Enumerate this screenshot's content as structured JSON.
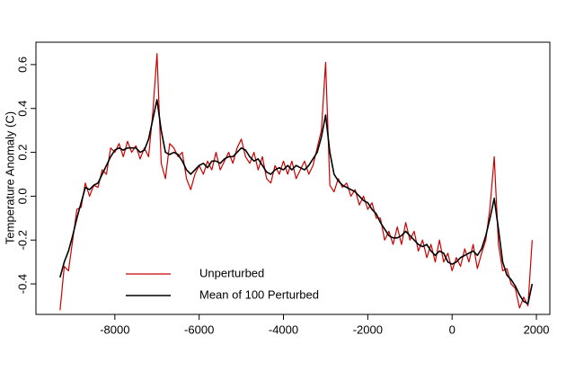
{
  "chart_data": {
    "type": "line",
    "y_label": "Temperature Anomaly (C)",
    "x": [
      -9300,
      -9200,
      -9100,
      -9000,
      -8900,
      -8800,
      -8700,
      -8600,
      -8500,
      -8400,
      -8300,
      -8200,
      -8100,
      -8000,
      -7900,
      -7800,
      -7700,
      -7600,
      -7500,
      -7400,
      -7300,
      -7200,
      -7100,
      -7000,
      -6900,
      -6800,
      -6700,
      -6600,
      -6500,
      -6400,
      -6300,
      -6200,
      -6100,
      -6000,
      -5900,
      -5800,
      -5700,
      -5600,
      -5500,
      -5400,
      -5300,
      -5200,
      -5100,
      -5000,
      -4900,
      -4800,
      -4700,
      -4600,
      -4500,
      -4400,
      -4300,
      -4200,
      -4100,
      -4000,
      -3900,
      -3800,
      -3700,
      -3600,
      -3500,
      -3400,
      -3300,
      -3200,
      -3100,
      -3000,
      -2900,
      -2800,
      -2700,
      -2600,
      -2500,
      -2400,
      -2300,
      -2200,
      -2100,
      -2000,
      -1900,
      -1800,
      -1700,
      -1600,
      -1500,
      -1400,
      -1300,
      -1200,
      -1100,
      -1000,
      -900,
      -800,
      -700,
      -600,
      -500,
      -400,
      -300,
      -200,
      -100,
      0,
      100,
      200,
      300,
      400,
      500,
      600,
      700,
      800,
      900,
      1000,
      1100,
      1200,
      1300,
      1400,
      1500,
      1600,
      1700,
      1800,
      1900
    ],
    "series": [
      {
        "name": "Unperturbed",
        "color": "#cc0000",
        "width": 1.2,
        "values": [
          -0.52,
          -0.32,
          -0.34,
          -0.2,
          -0.06,
          -0.05,
          0.06,
          0.0,
          0.05,
          0.04,
          0.12,
          0.1,
          0.22,
          0.2,
          0.24,
          0.18,
          0.25,
          0.2,
          0.23,
          0.17,
          0.22,
          0.18,
          0.38,
          0.65,
          0.15,
          0.08,
          0.24,
          0.22,
          0.18,
          0.2,
          0.08,
          0.03,
          0.1,
          0.14,
          0.1,
          0.16,
          0.12,
          0.2,
          0.12,
          0.16,
          0.2,
          0.15,
          0.22,
          0.26,
          0.18,
          0.15,
          0.2,
          0.12,
          0.18,
          0.08,
          0.06,
          0.14,
          0.1,
          0.16,
          0.1,
          0.16,
          0.08,
          0.12,
          0.16,
          0.1,
          0.14,
          0.22,
          0.3,
          0.61,
          0.05,
          0.02,
          0.08,
          0.04,
          0.06,
          0.0,
          0.03,
          -0.04,
          0.0,
          -0.06,
          -0.03,
          -0.1,
          -0.1,
          -0.2,
          -0.16,
          -0.22,
          -0.14,
          -0.22,
          -0.12,
          -0.2,
          -0.16,
          -0.25,
          -0.2,
          -0.28,
          -0.22,
          -0.3,
          -0.2,
          -0.3,
          -0.26,
          -0.34,
          -0.28,
          -0.32,
          -0.24,
          -0.3,
          -0.22,
          -0.33,
          -0.26,
          -0.2,
          -0.05,
          0.18,
          -0.22,
          -0.34,
          -0.33,
          -0.4,
          -0.42,
          -0.51,
          -0.46,
          -0.5,
          -0.2
        ]
      },
      {
        "name": "Mean of 100 Perturbed",
        "color": "#000000",
        "width": 1.6,
        "values": [
          -0.37,
          -0.3,
          -0.25,
          -0.18,
          -0.1,
          -0.03,
          0.04,
          0.03,
          0.05,
          0.06,
          0.1,
          0.14,
          0.18,
          0.21,
          0.22,
          0.21,
          0.22,
          0.22,
          0.22,
          0.2,
          0.21,
          0.26,
          0.35,
          0.44,
          0.3,
          0.2,
          0.19,
          0.2,
          0.19,
          0.16,
          0.12,
          0.1,
          0.12,
          0.14,
          0.15,
          0.13,
          0.16,
          0.16,
          0.15,
          0.17,
          0.18,
          0.18,
          0.2,
          0.22,
          0.21,
          0.18,
          0.16,
          0.17,
          0.14,
          0.11,
          0.1,
          0.12,
          0.13,
          0.12,
          0.14,
          0.12,
          0.14,
          0.13,
          0.12,
          0.14,
          0.17,
          0.2,
          0.27,
          0.37,
          0.2,
          0.1,
          0.07,
          0.05,
          0.04,
          0.03,
          0.02,
          0.0,
          -0.02,
          -0.03,
          -0.06,
          -0.08,
          -0.12,
          -0.15,
          -0.18,
          -0.19,
          -0.19,
          -0.18,
          -0.16,
          -0.18,
          -0.2,
          -0.22,
          -0.23,
          -0.22,
          -0.25,
          -0.27,
          -0.25,
          -0.26,
          -0.3,
          -0.31,
          -0.3,
          -0.28,
          -0.27,
          -0.26,
          -0.25,
          -0.27,
          -0.24,
          -0.18,
          -0.1,
          -0.01,
          -0.15,
          -0.3,
          -0.36,
          -0.38,
          -0.41,
          -0.45,
          -0.48,
          -0.49,
          -0.4
        ]
      }
    ],
    "xlim": [
      -9872,
      2319
    ],
    "ylim": [
      -0.539,
      0.702
    ],
    "xticks": [
      -8000,
      -6000,
      -4000,
      -2000,
      0,
      2000
    ],
    "yticks": [
      {
        "value": -0.4,
        "label": "-0.4"
      },
      {
        "value": -0.2,
        "label": "-0.2"
      },
      {
        "value": 0,
        "label": "0.0"
      },
      {
        "value": 0.2,
        "label": "0.2"
      },
      {
        "value": 0.4,
        "label": "0.4"
      },
      {
        "value": 0.6,
        "label": "0.6"
      }
    ],
    "legend": "bottomleft",
    "grid": false
  }
}
